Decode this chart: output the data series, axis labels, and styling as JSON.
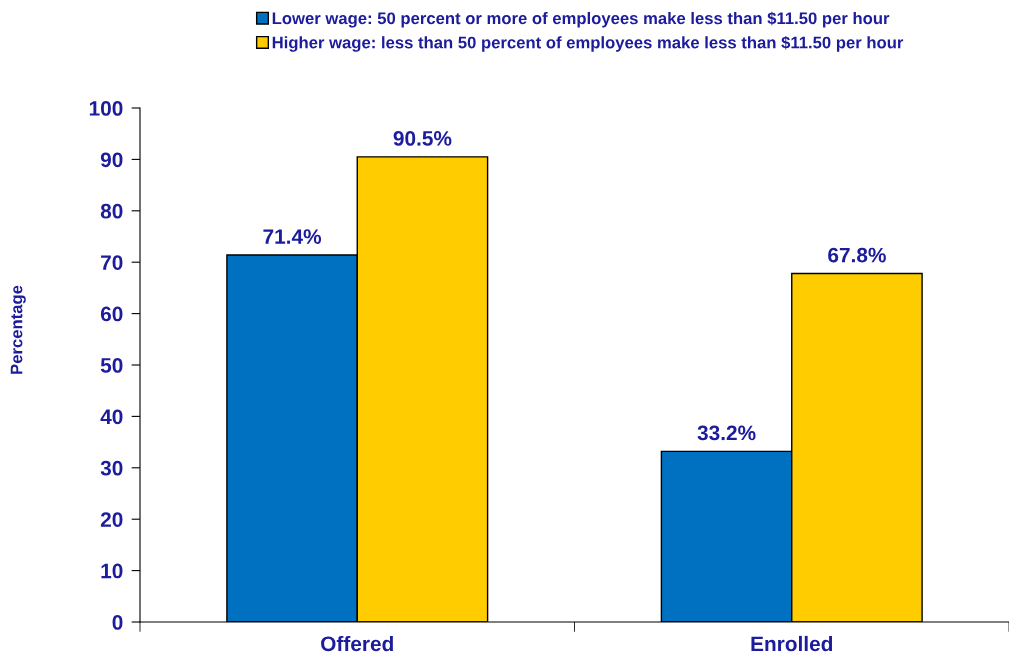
{
  "chart_data": {
    "type": "bar",
    "ylabel": "Percentage",
    "categories": [
      "Offered",
      "Enrolled"
    ],
    "series": [
      {
        "name": "Lower wage: 50 percent or more of employees make less than $11.50 per hour",
        "color": "#0070c0",
        "values": [
          71.4,
          33.2
        ],
        "value_labels": [
          "71.4%",
          "33.2%"
        ]
      },
      {
        "name": "Higher wage: less than 50 percent of employees make less than $11.50 per hour",
        "color": "#ffcc00",
        "values": [
          90.5,
          67.8
        ],
        "value_labels": [
          "90.5%",
          "67.8%"
        ]
      }
    ],
    "ylim": [
      0,
      100
    ],
    "yticks": [
      0,
      10,
      20,
      30,
      40,
      50,
      60,
      70,
      80,
      90,
      100
    ],
    "grid": false,
    "legend": "top"
  }
}
